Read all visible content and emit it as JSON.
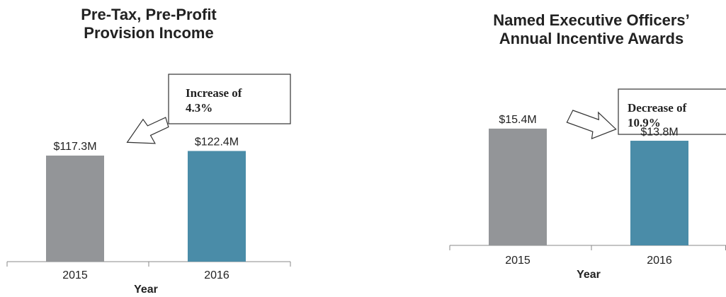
{
  "chart_data": [
    {
      "type": "bar",
      "title": [
        "Pre-Tax, Pre-Profit",
        "Provision Income"
      ],
      "x_label": "Year",
      "categories": [
        "2015",
        "2016"
      ],
      "values": [
        117.3,
        122.4
      ],
      "value_labels": [
        "$117.3M",
        "$122.4M"
      ],
      "colors": [
        "#939598",
        "#4a8ca8"
      ],
      "annotation": [
        "Increase of",
        "4.3%"
      ],
      "ylim": [
        0,
        140
      ]
    },
    {
      "type": "bar",
      "title": [
        "Named Executive Officers’",
        "Annual Incentive Awards"
      ],
      "x_label": "Year",
      "categories": [
        "2015",
        "2016"
      ],
      "values": [
        15.4,
        13.8
      ],
      "value_labels": [
        "$15.4M",
        "$13.8M"
      ],
      "colors": [
        "#939598",
        "#4a8ca8"
      ],
      "annotation": [
        "Decrease of",
        "10.9%"
      ],
      "ylim": [
        0,
        18
      ]
    }
  ]
}
